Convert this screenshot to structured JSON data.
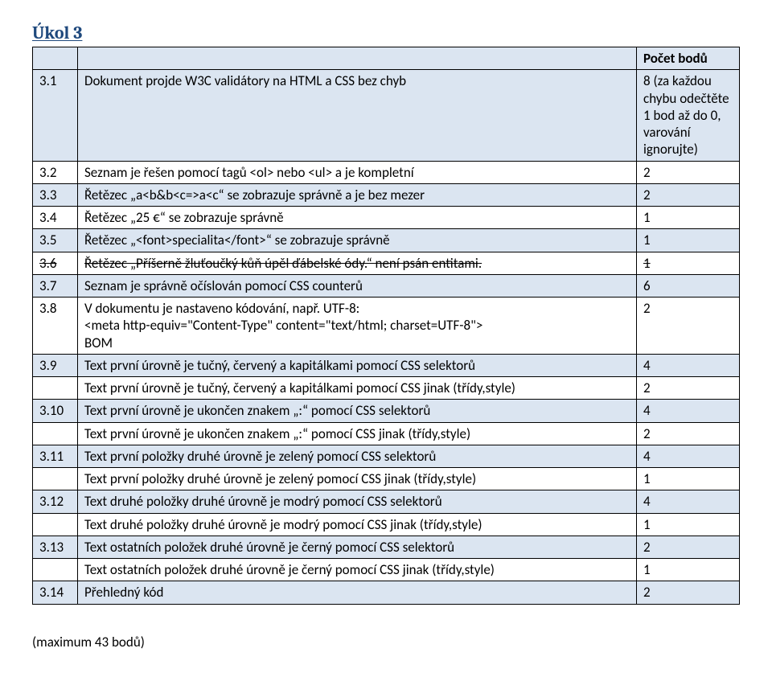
{
  "title": {
    "text": "Úkol 3",
    "color": "#1f497d"
  },
  "colors": {
    "header_shade": "#dbe5f1",
    "alt_shade": "#dbe5f1",
    "border": "#000000",
    "background": "#ffffff",
    "text": "#000000"
  },
  "headers": {
    "num": "",
    "desc": "",
    "pts": "Počet bodů"
  },
  "rows": [
    {
      "num": "3.1",
      "desc": "Dokument projde W3C validátory na HTML a CSS bez chyb",
      "pts": "8 (za každou\nchybu odečtěte\n1 bod až do 0,\nvarování\nignorujte)",
      "shade": "alt"
    },
    {
      "num": "3.2",
      "desc": "Seznam je řešen pomocí tagů <ol> nebo <ul> a je kompletní",
      "pts": "2",
      "shade": "none"
    },
    {
      "num": "3.3",
      "desc": "Řetězec „a<b&b<c=>a<c“ se zobrazuje správně a je bez mezer",
      "pts": "2",
      "shade": "alt"
    },
    {
      "num": "3.4",
      "desc": "Řetězec „25 €“ se zobrazuje správně",
      "pts": "1",
      "shade": "none"
    },
    {
      "num": "3.5",
      "desc": "Řetězec „<font>specialita</font>“ se zobrazuje správně",
      "pts": "1",
      "shade": "alt"
    },
    {
      "num": "3.6",
      "desc": "Řetězec  „Příšerně žluťoučký kůň úpěl ďábelské ódy.“ není  psán entitami.",
      "pts": "1",
      "shade": "none",
      "strike": true
    },
    {
      "num": "3.7",
      "desc": "Seznam je správně očíslován pomocí CSS counterů",
      "pts": "6",
      "shade": "alt"
    },
    {
      "num": "3.8",
      "desc": "V dokumentu je nastaveno kódování, např. UTF-8:\n<meta http-equiv=\"Content-Type\" content=\"text/html; charset=UTF-8\">\nBOM",
      "pts": "2",
      "shade": "none"
    },
    {
      "num": "3.9",
      "desc": "Text první úrovně je tučný, červený a kapitálkami pomocí CSS selektorů",
      "pts": "4",
      "shade": "alt"
    },
    {
      "num": "",
      "desc": "Text první úrovně je tučný, červený a kapitálkami pomocí CSS jinak (třídy,style)",
      "pts": "2",
      "shade": "none"
    },
    {
      "num": "3.10",
      "desc": "Text první úrovně je ukončen znakem „:“ pomocí CSS selektorů",
      "pts": "4",
      "shade": "alt"
    },
    {
      "num": "",
      "desc": "Text první úrovně je ukončen znakem „:“ pomocí CSS jinak (třídy,style)",
      "pts": "2",
      "shade": "none"
    },
    {
      "num": "3.11",
      "desc": "Text první položky druhé úrovně je zelený pomocí CSS selektorů",
      "pts": "4",
      "shade": "alt"
    },
    {
      "num": "",
      "desc": "Text první položky druhé úrovně je zelený pomocí CSS jinak (třídy,style)",
      "pts": "1",
      "shade": "none"
    },
    {
      "num": "3.12",
      "desc": "Text druhé položky druhé úrovně je modrý pomocí CSS selektorů",
      "pts": "4",
      "shade": "alt"
    },
    {
      "num": "",
      "desc": "Text druhé položky druhé úrovně je modrý pomocí CSS jinak (třídy,style)",
      "pts": "1",
      "shade": "none"
    },
    {
      "num": "3.13",
      "desc": "Text ostatních položek druhé úrovně je černý pomocí CSS selektorů",
      "pts": "2",
      "shade": "alt"
    },
    {
      "num": "",
      "desc": "Text ostatních položek druhé úrovně je černý pomocí CSS jinak (třídy,style)",
      "pts": "1",
      "shade": "none"
    },
    {
      "num": "3.14",
      "desc": "Přehledný kód",
      "pts": "2",
      "shade": "alt"
    }
  ],
  "footer": "(maximum 43 bodů)"
}
